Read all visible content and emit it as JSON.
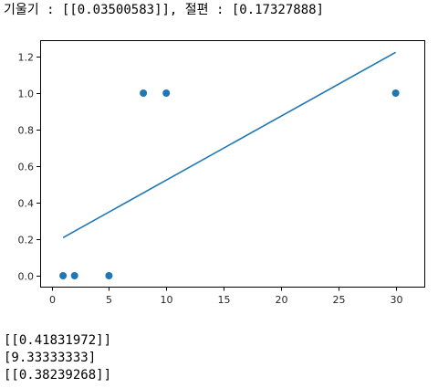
{
  "output": {
    "header": "기울기 : [[0.03500583]], 절편 : [0.17327888]",
    "lines": [
      "[[0.41831972]]",
      "[9.33333333]",
      "[[0.38239268]]"
    ]
  },
  "chart_data": {
    "type": "scatter",
    "title": "",
    "xlabel": "",
    "ylabel": "",
    "xlim": [
      -1,
      32.5
    ],
    "ylim": [
      -0.06,
      1.29
    ],
    "xticks": [
      0,
      5,
      10,
      15,
      20,
      25,
      30
    ],
    "xtick_labels": [
      "0",
      "5",
      "10",
      "15",
      "20",
      "25",
      "30"
    ],
    "yticks": [
      0.0,
      0.2,
      0.4,
      0.6,
      0.8,
      1.0,
      1.2
    ],
    "ytick_labels": [
      "0.0",
      "0.2",
      "0.4",
      "0.6",
      "0.8",
      "1.0",
      "1.2"
    ],
    "grid": false,
    "series": [
      {
        "kind": "scatter",
        "color": "#1f77b4",
        "x": [
          1,
          2,
          5,
          8,
          10,
          30
        ],
        "y": [
          0,
          0,
          0,
          1,
          1,
          1
        ]
      },
      {
        "kind": "line",
        "color": "#1f77b4",
        "x": [
          1,
          30
        ],
        "y": [
          0.2083,
          1.2235
        ]
      }
    ]
  }
}
